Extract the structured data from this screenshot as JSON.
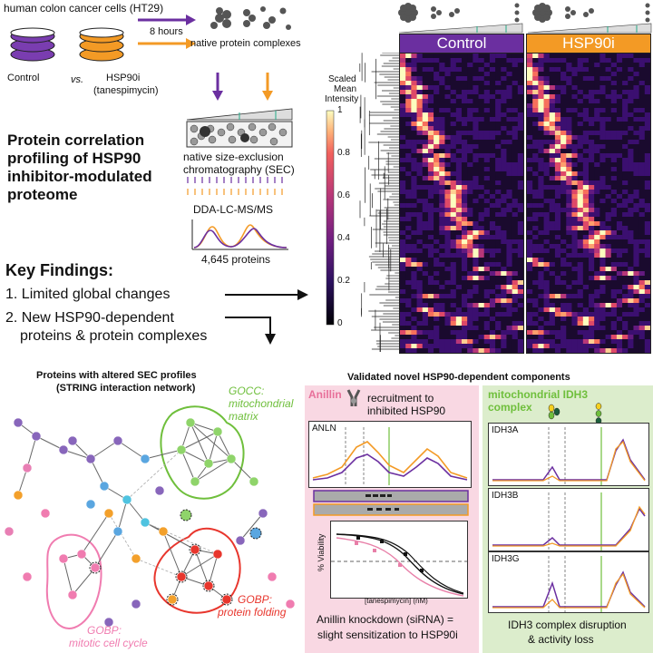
{
  "workflow": {
    "cells_label": "human colon cancer cells (HT29)",
    "control_label": "Control",
    "vs_label": "vs.",
    "hsp90i_label": "HSP90i",
    "tanespimycin_label": "(tanespimycin)",
    "time_label": "8 hours",
    "complexes_label": "native protein complexes",
    "sec_label_line1": "native size-exclusion",
    "sec_label_line2": "chromatography (SEC)",
    "ms_label": "DDA-LC-MS/MS",
    "proteins_label": "4,645 proteins"
  },
  "main_title": {
    "line1": "Protein correlation",
    "line2": "profiling of HSP90",
    "line3": "inhibitor-modulated",
    "line4": "proteome"
  },
  "key_findings": {
    "heading": "Key Findings:",
    "item1": "1. Limited global changes",
    "item2_line1": "2. New HSP90-dependent",
    "item2_line2": "proteins & protein complexes"
  },
  "heatmap": {
    "colorbar_title_line1": "Scaled",
    "colorbar_title_line2": "Mean",
    "colorbar_title_line3": "Intensity",
    "colorbar_ticks": [
      "1",
      "0.8",
      "0.6",
      "0.4",
      "0.2",
      "0"
    ],
    "control_header": "Control",
    "hsp90i_header": "HSP90i",
    "control_color": "#6b2fa0",
    "hsp90i_color": "#f39a25"
  },
  "network": {
    "title_line1": "Proteins with altered SEC profiles",
    "title_line2": "(STRING interaction network)",
    "gocc_line1": "GOCC:",
    "gocc_line2": "mitochondrial",
    "gocc_line3": "matrix",
    "gobp_folding_line1": "GOBP:",
    "gobp_folding_line2": "protein folding",
    "gobp_cycle_line1": "GOBP:",
    "gobp_cycle_line2": "mitotic cell cycle",
    "gocc_color": "#6fbf3c",
    "folding_color": "#e8362d",
    "cycle_color": "#f07cb0"
  },
  "validated": {
    "title": "Validated novel HSP90-dependent components",
    "anillin_title": "Anillin",
    "recruitment_line1": "recruitment to",
    "recruitment_line2": "inhibited HSP90",
    "anln_label": "ANLN",
    "viability_label": "% Viability",
    "tanespimycin_axis": "[tanespimycin] (nM)",
    "anillin_caption_line1": "Anillin knockdown (siRNA) =",
    "anillin_caption_line2": "slight sensitization to HSP90i",
    "idh3_title_line1": "mitochondrial IDH3",
    "idh3_title_line2": "complex",
    "idh3a_label": "IDH3A",
    "idh3b_label": "IDH3B",
    "idh3g_label": "IDH3G",
    "idh3_caption_line1": "IDH3 complex disruption",
    "idh3_caption_line2": "& activity loss"
  }
}
